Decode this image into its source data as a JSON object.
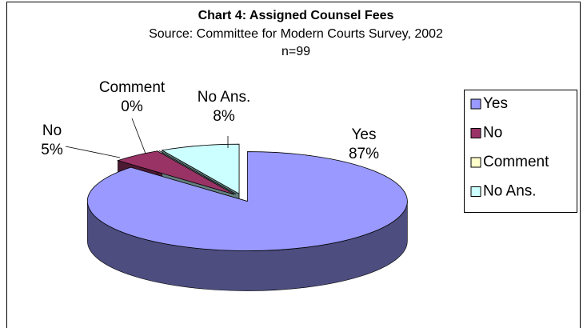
{
  "chart_data": {
    "type": "pie3d",
    "title": "Chart 4: Assigned Counsel Fees",
    "subtitle": [
      "Source: Committee for Modern Courts Survey, 2002",
      "n=99"
    ],
    "categories": [
      "Yes",
      "No",
      "Comment",
      "No Ans."
    ],
    "values": [
      87,
      5,
      0,
      8
    ],
    "value_labels": [
      "87%",
      "5%",
      "0%",
      "8%"
    ],
    "colors": [
      "#9999ff",
      "#993366",
      "#ffffcc",
      "#ccffff"
    ],
    "legend": "right"
  }
}
